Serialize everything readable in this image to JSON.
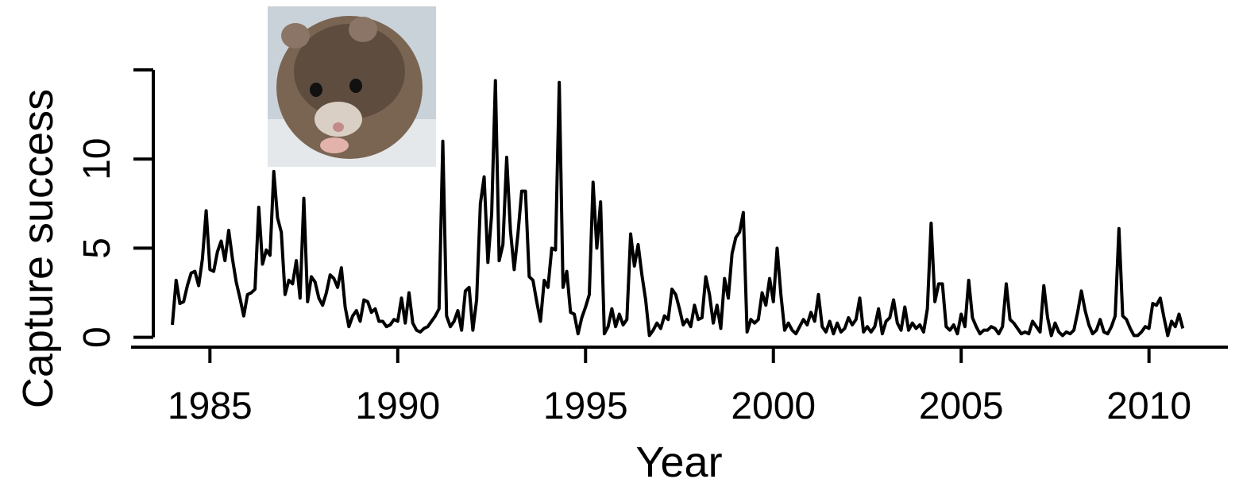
{
  "chart_data": {
    "type": "line",
    "xlabel": "Year",
    "ylabel": "Capture success",
    "xlim": [
      1982.9,
      2012.1
    ],
    "ylim": [
      -0.55,
      15
    ],
    "xticks": [
      1985,
      1990,
      1995,
      2000,
      2005,
      2010
    ],
    "yticks": [
      0,
      5,
      10
    ],
    "series": [
      {
        "color": "#000000",
        "x": [
          1984.0,
          1984.1,
          1984.2,
          1984.3,
          1984.4,
          1984.5,
          1984.6,
          1984.7,
          1984.8,
          1984.9,
          1985.0,
          1985.1,
          1985.2,
          1985.3,
          1985.4,
          1985.5,
          1985.6,
          1985.7,
          1985.8,
          1985.9,
          1986.0,
          1986.1,
          1986.2,
          1986.3,
          1986.4,
          1986.5,
          1986.6,
          1986.7,
          1986.8,
          1986.9,
          1987.0,
          1987.1,
          1987.2,
          1987.3,
          1987.4,
          1987.5,
          1987.6,
          1987.7,
          1987.8,
          1987.9,
          1988.0,
          1988.1,
          1988.2,
          1988.3,
          1988.4,
          1988.5,
          1988.6,
          1988.7,
          1988.8,
          1988.9,
          1989.0,
          1989.1,
          1989.2,
          1989.3,
          1989.4,
          1989.5,
          1989.6,
          1989.7,
          1989.8,
          1989.9,
          1990.0,
          1990.1,
          1990.2,
          1990.3,
          1990.4,
          1990.5,
          1990.6,
          1990.7,
          1990.8,
          1990.9,
          1991.0,
          1991.1,
          1991.2,
          1991.3,
          1991.4,
          1991.5,
          1991.6,
          1991.7,
          1991.8,
          1991.9,
          1992.0,
          1992.1,
          1992.2,
          1992.3,
          1992.4,
          1992.5,
          1992.6,
          1992.7,
          1992.8,
          1992.9,
          1993.0,
          1993.1,
          1993.2,
          1993.3,
          1993.4,
          1993.5,
          1993.6,
          1993.7,
          1993.8,
          1993.9,
          1994.0,
          1994.1,
          1994.2,
          1994.3,
          1994.4,
          1994.5,
          1994.6,
          1994.7,
          1994.8,
          1994.9,
          1995.0,
          1995.1,
          1995.2,
          1995.3,
          1995.4,
          1995.5,
          1995.6,
          1995.7,
          1995.8,
          1995.9,
          1996.0,
          1996.1,
          1996.2,
          1996.3,
          1996.4,
          1996.5,
          1996.6,
          1996.7,
          1996.8,
          1996.9,
          1997.0,
          1997.1,
          1997.2,
          1997.3,
          1997.4,
          1997.5,
          1997.6,
          1997.7,
          1997.8,
          1997.9,
          1998.0,
          1998.1,
          1998.2,
          1998.3,
          1998.4,
          1998.5,
          1998.6,
          1998.7,
          1998.8,
          1998.9,
          1999.0,
          1999.1,
          1999.2,
          1999.3,
          1999.4,
          1999.5,
          1999.6,
          1999.7,
          1999.8,
          1999.9,
          2000.0,
          2000.1,
          2000.2,
          2000.3,
          2000.4,
          2000.5,
          2000.6,
          2000.7,
          2000.8,
          2000.9,
          2001.0,
          2001.1,
          2001.2,
          2001.3,
          2001.4,
          2001.5,
          2001.6,
          2001.7,
          2001.8,
          2001.9,
          2002.0,
          2002.1,
          2002.2,
          2002.3,
          2002.4,
          2002.5,
          2002.6,
          2002.7,
          2002.8,
          2002.9,
          2003.0,
          2003.1,
          2003.2,
          2003.3,
          2003.4,
          2003.5,
          2003.6,
          2003.7,
          2003.8,
          2003.9,
          2004.0,
          2004.1,
          2004.2,
          2004.3,
          2004.4,
          2004.5,
          2004.6,
          2004.7,
          2004.8,
          2004.9,
          2005.0,
          2005.1,
          2005.2,
          2005.3,
          2005.4,
          2005.5,
          2005.6,
          2005.7,
          2005.8,
          2005.9,
          2006.0,
          2006.1,
          2006.2,
          2006.3,
          2006.4,
          2006.5,
          2006.6,
          2006.7,
          2006.8,
          2006.9,
          2007.0,
          2007.1,
          2007.2,
          2007.3,
          2007.4,
          2007.5,
          2007.6,
          2007.7,
          2007.8,
          2007.9,
          2008.0,
          2008.1,
          2008.2,
          2008.3,
          2008.4,
          2008.5,
          2008.6,
          2008.7,
          2008.8,
          2008.9,
          2009.0,
          2009.1,
          2009.2,
          2009.3,
          2009.4,
          2009.5,
          2009.6,
          2009.7,
          2009.8,
          2009.9,
          2010.0,
          2010.1,
          2010.2,
          2010.3,
          2010.4,
          2010.5,
          2010.6,
          2010.7,
          2010.8,
          2010.9
        ],
        "values": [
          0.7,
          3.2,
          1.9,
          2.0,
          2.9,
          3.6,
          3.7,
          2.9,
          4.4,
          7.1,
          3.8,
          3.7,
          4.8,
          5.4,
          4.3,
          6.0,
          4.4,
          3.1,
          2.2,
          1.2,
          2.4,
          2.5,
          2.7,
          7.3,
          4.1,
          4.9,
          4.6,
          9.3,
          6.7,
          5.9,
          2.4,
          3.2,
          3.0,
          4.3,
          2.2,
          7.8,
          2.0,
          3.4,
          3.1,
          2.2,
          1.8,
          2.5,
          3.5,
          3.3,
          2.8,
          3.9,
          1.7,
          0.6,
          1.2,
          1.5,
          0.9,
          2.1,
          2.0,
          1.4,
          1.6,
          0.9,
          0.9,
          0.6,
          0.7,
          1.0,
          0.9,
          2.2,
          0.8,
          2.5,
          0.8,
          0.4,
          0.3,
          0.5,
          0.6,
          0.9,
          1.2,
          1.6,
          11.0,
          1.2,
          0.6,
          0.9,
          1.5,
          0.4,
          2.6,
          2.8,
          0.4,
          2.1,
          7.5,
          9.0,
          4.2,
          6.9,
          14.4,
          4.3,
          5.2,
          10.1,
          6.0,
          3.8,
          5.8,
          8.2,
          8.2,
          3.4,
          3.2,
          2.0,
          0.9,
          3.2,
          2.8,
          5.0,
          4.9,
          14.3,
          2.8,
          3.7,
          1.4,
          1.3,
          0.2,
          1.1,
          1.7,
          2.4,
          8.7,
          5.0,
          7.6,
          0.2,
          0.6,
          1.6,
          0.6,
          1.3,
          0.7,
          1.0,
          5.8,
          4.0,
          5.2,
          3.5,
          2.1,
          0.1,
          0.4,
          0.8,
          0.5,
          1.2,
          1.0,
          2.7,
          2.4,
          1.6,
          0.7,
          1.0,
          0.6,
          1.8,
          1.0,
          1.1,
          3.4,
          2.4,
          0.8,
          1.8,
          0.5,
          3.3,
          2.2,
          4.7,
          5.6,
          5.9,
          7.0,
          0.3,
          1.0,
          0.8,
          1.0,
          2.5,
          1.8,
          3.3,
          2.0,
          5.0,
          2.4,
          0.4,
          0.8,
          0.4,
          0.2,
          0.6,
          1.0,
          0.7,
          1.4,
          0.9,
          2.4,
          0.6,
          0.3,
          0.9,
          0.2,
          0.8,
          0.3,
          0.5,
          1.1,
          0.7,
          1.0,
          2.2,
          0.3,
          0.6,
          0.3,
          0.6,
          1.6,
          0.2,
          0.9,
          1.1,
          2.1,
          0.8,
          0.4,
          1.7,
          0.4,
          0.8,
          0.5,
          0.7,
          0.3,
          1.6,
          6.4,
          2.0,
          3.0,
          3.0,
          0.6,
          0.4,
          0.7,
          0.2,
          1.3,
          0.6,
          3.2,
          1.1,
          0.6,
          0.2,
          0.4,
          0.4,
          0.6,
          0.5,
          0.2,
          0.6,
          3.0,
          1.0,
          0.8,
          0.5,
          0.2,
          0.3,
          0.2,
          0.9,
          0.6,
          0.3,
          2.9,
          1.1,
          0.1,
          0.8,
          0.3,
          0.1,
          0.3,
          0.2,
          0.4,
          1.4,
          2.6,
          1.5,
          0.7,
          0.2,
          0.4,
          1.0,
          0.3,
          0.2,
          0.6,
          1.2,
          6.1,
          1.2,
          1.0,
          0.5,
          0.1,
          0.1,
          0.3,
          0.6,
          0.5,
          1.9,
          1.8,
          2.2,
          1.1,
          0.1,
          0.9,
          0.6,
          1.3,
          0.5
        ]
      }
    ]
  }
}
